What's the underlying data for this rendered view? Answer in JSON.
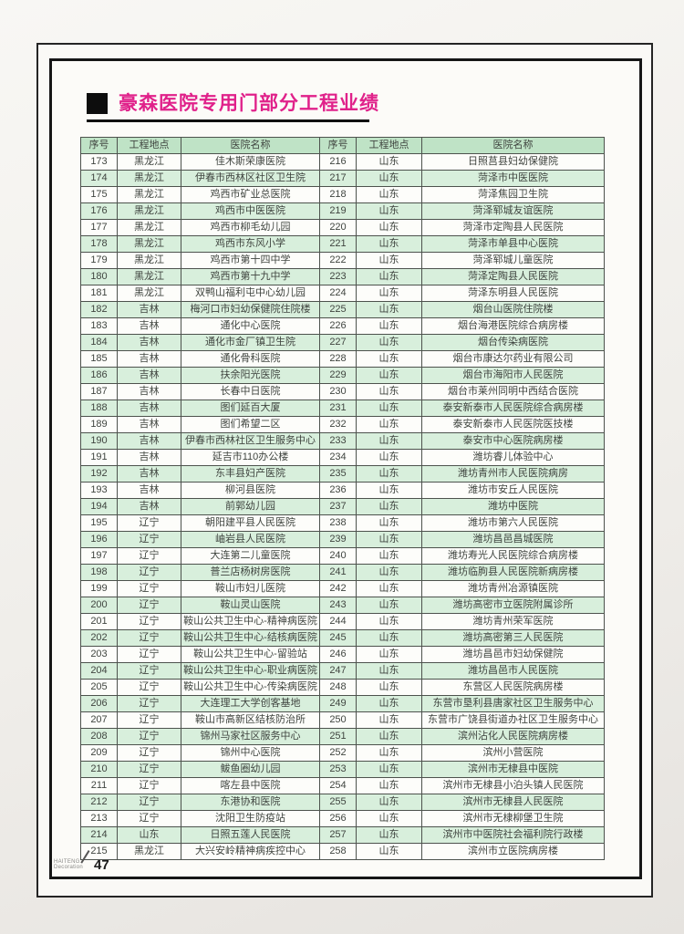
{
  "title": "豪森医院专用门部分工程业绩",
  "table": {
    "columns": [
      "序号",
      "工程地点",
      "医院名称",
      "序号",
      "工程地点",
      "医院名称"
    ],
    "left_rows": [
      [
        "173",
        "黑龙江",
        "佳木斯荣康医院"
      ],
      [
        "174",
        "黑龙江",
        "伊春市西林区社区卫生院"
      ],
      [
        "175",
        "黑龙江",
        "鸡西市矿业总医院"
      ],
      [
        "176",
        "黑龙江",
        "鸡西市中医医院"
      ],
      [
        "177",
        "黑龙江",
        "鸡西市柳毛幼儿园"
      ],
      [
        "178",
        "黑龙江",
        "鸡西市东风小学"
      ],
      [
        "179",
        "黑龙江",
        "鸡西市第十四中学"
      ],
      [
        "180",
        "黑龙江",
        "鸡西市第十九中学"
      ],
      [
        "181",
        "黑龙江",
        "双鸭山福利屯中心幼儿园"
      ],
      [
        "182",
        "吉林",
        "梅河口市妇幼保健院住院楼"
      ],
      [
        "183",
        "吉林",
        "通化中心医院"
      ],
      [
        "184",
        "吉林",
        "通化市金厂镇卫生院"
      ],
      [
        "185",
        "吉林",
        "通化骨科医院"
      ],
      [
        "186",
        "吉林",
        "扶余阳光医院"
      ],
      [
        "187",
        "吉林",
        "长春中日医院"
      ],
      [
        "188",
        "吉林",
        "图们延百大厦"
      ],
      [
        "189",
        "吉林",
        "图们希望二区"
      ],
      [
        "190",
        "吉林",
        "伊春市西林社区卫生服务中心"
      ],
      [
        "191",
        "吉林",
        "延吉市110办公楼"
      ],
      [
        "192",
        "吉林",
        "东丰县妇产医院"
      ],
      [
        "193",
        "吉林",
        "柳河县医院"
      ],
      [
        "194",
        "吉林",
        "前郭幼儿园"
      ],
      [
        "195",
        "辽宁",
        "朝阳建平县人民医院"
      ],
      [
        "196",
        "辽宁",
        "岫岩县人民医院"
      ],
      [
        "197",
        "辽宁",
        "大连第二儿童医院"
      ],
      [
        "198",
        "辽宁",
        "普兰店杨树房医院"
      ],
      [
        "199",
        "辽宁",
        "鞍山市妇儿医院"
      ],
      [
        "200",
        "辽宁",
        "鞍山灵山医院"
      ],
      [
        "201",
        "辽宁",
        "鞍山公共卫生中心-精神病医院"
      ],
      [
        "202",
        "辽宁",
        "鞍山公共卫生中心-结核病医院"
      ],
      [
        "203",
        "辽宁",
        "鞍山公共卫生中心-留验站"
      ],
      [
        "204",
        "辽宁",
        "鞍山公共卫生中心-职业病医院"
      ],
      [
        "205",
        "辽宁",
        "鞍山公共卫生中心-传染病医院"
      ],
      [
        "206",
        "辽宁",
        "大连理工大学创客基地"
      ],
      [
        "207",
        "辽宁",
        "鞍山市高新区结核防治所"
      ],
      [
        "208",
        "辽宁",
        "锦州马家社区服务中心"
      ],
      [
        "209",
        "辽宁",
        "锦州中心医院"
      ],
      [
        "210",
        "辽宁",
        "鲅鱼圈幼儿园"
      ],
      [
        "211",
        "辽宁",
        "喀左县中医院"
      ],
      [
        "212",
        "辽宁",
        "东港协和医院"
      ],
      [
        "213",
        "辽宁",
        "沈阳卫生防疫站"
      ],
      [
        "214",
        "山东",
        "日照五莲人民医院"
      ],
      [
        "215",
        "黑龙江",
        "大兴安岭精神病疾控中心"
      ]
    ],
    "right_rows": [
      [
        "216",
        "山东",
        "日照莒县妇幼保健院"
      ],
      [
        "217",
        "山东",
        "菏泽市中医医院"
      ],
      [
        "218",
        "山东",
        "菏泽焦园卫生院"
      ],
      [
        "219",
        "山东",
        "菏泽郓城友谊医院"
      ],
      [
        "220",
        "山东",
        "菏泽市定陶县人民医院"
      ],
      [
        "221",
        "山东",
        "菏泽市单县中心医院"
      ],
      [
        "222",
        "山东",
        "菏泽郓城儿童医院"
      ],
      [
        "223",
        "山东",
        "菏泽定陶县人民医院"
      ],
      [
        "224",
        "山东",
        "菏泽东明县人民医院"
      ],
      [
        "225",
        "山东",
        "烟台山医院住院楼"
      ],
      [
        "226",
        "山东",
        "烟台海港医院综合病房楼"
      ],
      [
        "227",
        "山东",
        "烟台传染病医院"
      ],
      [
        "228",
        "山东",
        "烟台市康达尔药业有限公司"
      ],
      [
        "229",
        "山东",
        "烟台市海阳市人民医院"
      ],
      [
        "230",
        "山东",
        "烟台市莱州同明中西结合医院"
      ],
      [
        "231",
        "山东",
        "泰安新泰市人民医院综合病房楼"
      ],
      [
        "232",
        "山东",
        "泰安新泰市人民医院医技楼"
      ],
      [
        "233",
        "山东",
        "泰安市中心医院病房楼"
      ],
      [
        "234",
        "山东",
        "潍坊睿儿体验中心"
      ],
      [
        "235",
        "山东",
        "潍坊青州市人民医院病房"
      ],
      [
        "236",
        "山东",
        "潍坊市安丘人民医院"
      ],
      [
        "237",
        "山东",
        "潍坊中医院"
      ],
      [
        "238",
        "山东",
        "潍坊市第六人民医院"
      ],
      [
        "239",
        "山东",
        "潍坊昌邑昌城医院"
      ],
      [
        "240",
        "山东",
        "潍坊寿光人民医院综合病房楼"
      ],
      [
        "241",
        "山东",
        "潍坊临朐县人民医院新病房楼"
      ],
      [
        "242",
        "山东",
        "潍坊青州冶源镇医院"
      ],
      [
        "243",
        "山东",
        "潍坊高密市立医院附属诊所"
      ],
      [
        "244",
        "山东",
        "潍坊青州荣军医院"
      ],
      [
        "245",
        "山东",
        "潍坊高密第三人民医院"
      ],
      [
        "246",
        "山东",
        "潍坊昌邑市妇幼保健院"
      ],
      [
        "247",
        "山东",
        "潍坊昌邑市人民医院"
      ],
      [
        "248",
        "山东",
        "东营区人民医院病房楼"
      ],
      [
        "249",
        "山东",
        "东营市垦利县唐家社区卫生服务中心"
      ],
      [
        "250",
        "山东",
        "东营市广饶县街道办社区卫生服务中心"
      ],
      [
        "251",
        "山东",
        "滨州沾化人民医院病房楼"
      ],
      [
        "252",
        "山东",
        "滨州小营医院"
      ],
      [
        "253",
        "山东",
        "滨州市无棣县中医院"
      ],
      [
        "254",
        "山东",
        "滨州市无棣县小泊头镇人民医院"
      ],
      [
        "255",
        "山东",
        "滨州市无棣县人民医院"
      ],
      [
        "256",
        "山东",
        "滨州市无棣柳堡卫生院"
      ],
      [
        "257",
        "山东",
        "滨州市中医院社会福利院行政楼"
      ],
      [
        "258",
        "山东",
        "滨州市立医院病房楼"
      ]
    ]
  },
  "footer": {
    "brand_top": "HAITENG",
    "brand_bottom": "Decoration",
    "page_number": "47"
  },
  "colors": {
    "title_color": "#e0218a",
    "header_bg": "#bfe3c6",
    "row_alt_bg": "#d8efdc",
    "row_bg": "#fdfdfa",
    "border_color": "#4d524d",
    "text_color": "#3f443f"
  }
}
